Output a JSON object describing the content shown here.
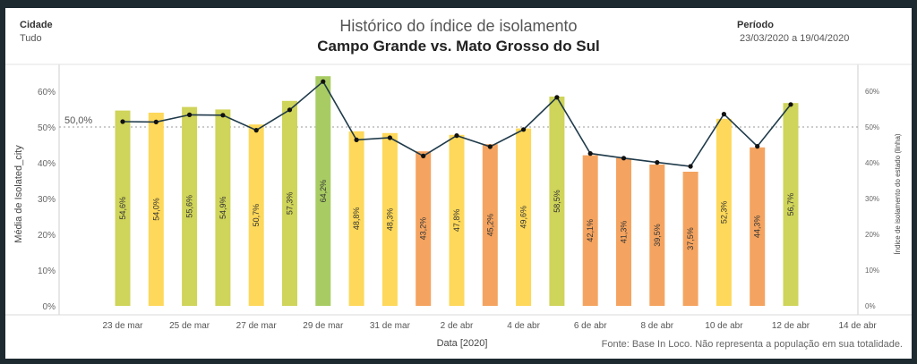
{
  "header": {
    "city_label": "Cidade",
    "city_value": "Tudo",
    "period_label": "Período",
    "period_value": "23/03/2020 a 19/04/2020",
    "title": "Histórico do índice de isolamento",
    "subtitle": "Campo Grande vs. Mato Grosso do Sul"
  },
  "footer": {
    "source": "Fonte: Base In Loco. Não representa a população em sua totalidade."
  },
  "colors": {
    "yellow": "#fdd85a",
    "yellow_green": "#cfd45a",
    "green": "#a8cc63",
    "orange": "#f4a460",
    "line": "#1f3a4a"
  },
  "chart_data": {
    "type": "bar",
    "xlabel": "Data [2020]",
    "ylabel": "Média de Isolated_city",
    "y2label": "Índice de isolamento do estado (linha)",
    "ylim": [
      0,
      65
    ],
    "yticks": [
      "0%",
      "10%",
      "20%",
      "30%",
      "40%",
      "50%",
      "60%"
    ],
    "y2ticks": [
      "0%",
      "10%",
      "20%",
      "30%",
      "40%",
      "50%",
      "60%"
    ],
    "reference_line": {
      "value": 50,
      "label": "50,0%"
    },
    "x_tick_labels": [
      "23 de mar",
      "25 de mar",
      "27 de mar",
      "29 de mar",
      "31 de mar",
      "2 de abr",
      "4 de abr",
      "6 de abr",
      "8 de abr",
      "10 de abr",
      "12 de abr",
      "14 de abr"
    ],
    "categories": [
      "23/03",
      "24/03",
      "25/03",
      "26/03",
      "27/03",
      "28/03",
      "29/03",
      "30/03",
      "31/03",
      "01/04",
      "02/04",
      "03/04",
      "04/04",
      "05/04",
      "06/04",
      "07/04",
      "08/04",
      "09/04",
      "10/04",
      "11/04",
      "12/04"
    ],
    "bar_values": [
      54.6,
      54.0,
      55.6,
      54.9,
      50.7,
      57.3,
      64.2,
      48.8,
      48.3,
      43.2,
      47.8,
      45.2,
      49.6,
      58.5,
      42.1,
      41.3,
      39.5,
      37.5,
      52.3,
      44.3,
      56.7
    ],
    "bar_labels": [
      "54,6%",
      "54,0%",
      "55,6%",
      "54,9%",
      "50,7%",
      "57,3%",
      "64,2%",
      "48,8%",
      "48,3%",
      "43,2%",
      "47,8%",
      "45,2%",
      "49,6%",
      "58,5%",
      "42,1%",
      "41,3%",
      "39,5%",
      "37,5%",
      "52,3%",
      "44,3%",
      "56,7%"
    ],
    "bar_colors": [
      "yellow_green",
      "yellow",
      "yellow_green",
      "yellow_green",
      "yellow",
      "yellow_green",
      "green",
      "yellow",
      "yellow",
      "orange",
      "yellow",
      "orange",
      "yellow",
      "yellow_green",
      "orange",
      "orange",
      "orange",
      "orange",
      "yellow",
      "orange",
      "yellow_green"
    ],
    "line_values": [
      51.5,
      51.4,
      53.4,
      53.3,
      49.1,
      54.8,
      62.7,
      46.4,
      47.0,
      41.9,
      47.6,
      44.5,
      49.3,
      58.3,
      42.6,
      41.3,
      40.1,
      39.0,
      53.6,
      44.6,
      56.3
    ]
  }
}
